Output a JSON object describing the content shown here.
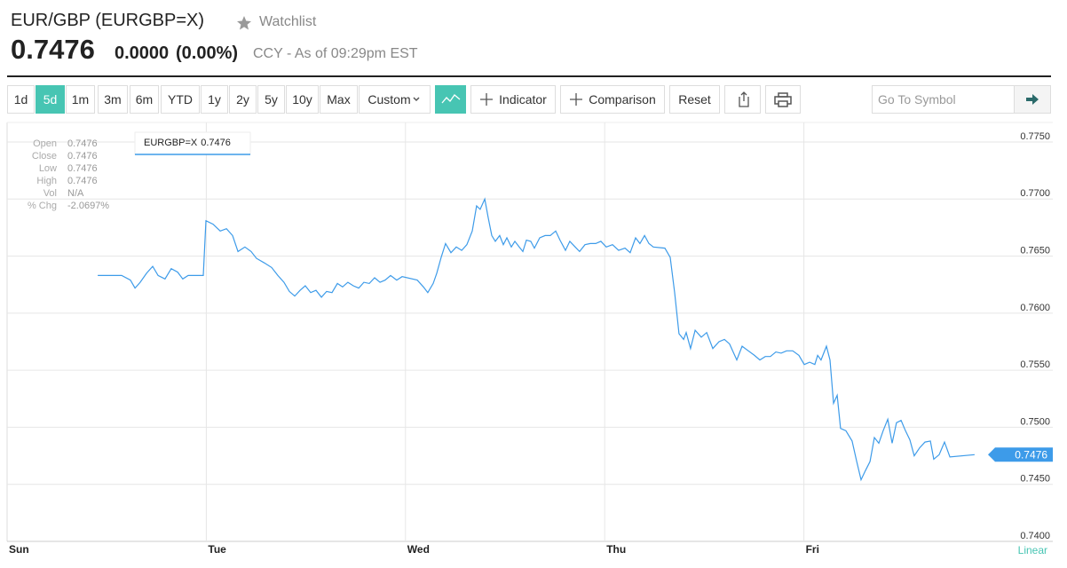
{
  "header": {
    "symbol": "EUR/GBP (EURGBP=X)",
    "watchlist": "Watchlist",
    "price": "0.7476",
    "change": "0.0000",
    "change_pct": "(0.00%)",
    "asof": "CCY - As of 09:29pm EST"
  },
  "toolbar": {
    "ranges": [
      "1d",
      "5d",
      "1m",
      "3m",
      "6m",
      "YTD",
      "1y",
      "2y",
      "5y",
      "10y",
      "Max"
    ],
    "custom": "Custom",
    "indicator": "Indicator",
    "comparison": "Comparison",
    "reset": "Reset",
    "search_placeholder": "Go To Symbol"
  },
  "info": [
    {
      "label": "Open",
      "value": "0.7476"
    },
    {
      "label": "Close",
      "value": "0.7476"
    },
    {
      "label": "Low",
      "value": "0.7476"
    },
    {
      "label": "High",
      "value": "0.7476"
    },
    {
      "label": "Vol",
      "value": "N/A"
    },
    {
      "label": "% Chg",
      "value": "-2.0697%"
    }
  ],
  "chart_data": {
    "type": "line",
    "series": [
      {
        "name": "EURGBP=X",
        "color": "#3d9be9",
        "values": [
          0.7633,
          0.7633,
          0.7629,
          0.7622,
          0.7627,
          0.7635,
          0.7641,
          0.7633,
          0.763,
          0.7639,
          0.7636,
          0.763,
          0.7633,
          0.7633,
          0.7681,
          0.7678,
          0.7672,
          0.7674,
          0.7668,
          0.7654,
          0.7658,
          0.7654,
          0.7648,
          0.7644,
          0.764,
          0.7633,
          0.7627,
          0.7619,
          0.7615,
          0.762,
          0.7624,
          0.7618,
          0.762,
          0.7614,
          0.7619,
          0.7618,
          0.7626,
          0.7623,
          0.7627,
          0.7624,
          0.7622,
          0.7627,
          0.7626,
          0.7631,
          0.7627,
          0.7629,
          0.7633,
          0.7629,
          0.7632,
          0.7629,
          0.7623,
          0.7618,
          0.7626,
          0.7635,
          0.7649,
          0.7661,
          0.7653,
          0.7658,
          0.7655,
          0.766,
          0.7672,
          0.7694,
          0.7691,
          0.77,
          0.7684,
          0.7668,
          0.7663,
          0.7668,
          0.766,
          0.7666,
          0.7658,
          0.7663,
          0.7658,
          0.7654,
          0.7664,
          0.7663,
          0.7657,
          0.7666,
          0.7668,
          0.7668,
          0.7672,
          0.7664,
          0.7655,
          0.7663,
          0.7658,
          0.7654,
          0.766,
          0.7661,
          0.7661,
          0.7663,
          0.7658,
          0.766,
          0.7655,
          0.7657,
          0.7653,
          0.7666,
          0.7661,
          0.7668,
          0.7661,
          0.7658,
          0.7657,
          0.7649,
          0.7618,
          0.7582,
          0.7577,
          0.7583,
          0.7569,
          0.7585,
          0.7579,
          0.7583,
          0.7569,
          0.7575,
          0.7577,
          0.7573,
          0.7559,
          0.7571,
          0.7567,
          0.7563,
          0.7559,
          0.7562,
          0.7562,
          0.7566,
          0.7565,
          0.7567,
          0.7567,
          0.7563,
          0.7555,
          0.7557,
          0.7555,
          0.7563,
          0.7559,
          0.7571,
          0.7559,
          0.7521,
          0.7528,
          0.7499,
          0.7497,
          0.7488,
          0.747,
          0.7454,
          0.7462,
          0.747,
          0.7491,
          0.7486,
          0.7497,
          0.7507,
          0.7486,
          0.7504,
          0.7506,
          0.7497,
          0.7489,
          0.7475,
          0.7482,
          0.7487,
          0.7488,
          0.7472,
          0.7476,
          0.7487,
          0.7474,
          0.7476
        ]
      }
    ],
    "x": [
      0.455,
      0.575,
      0.619,
      0.642,
      0.668,
      0.7,
      0.731,
      0.758,
      0.793,
      0.824,
      0.856,
      0.882,
      0.909,
      0.985,
      0.998,
      1.034,
      1.07,
      1.101,
      1.132,
      1.159,
      1.194,
      1.225,
      1.252,
      1.292,
      1.328,
      1.359,
      1.39,
      1.417,
      1.444,
      1.471,
      1.497,
      1.524,
      1.551,
      1.578,
      1.604,
      1.631,
      1.658,
      1.684,
      1.711,
      1.738,
      1.765,
      1.791,
      1.818,
      1.845,
      1.872,
      1.898,
      1.925,
      1.956,
      1.983,
      2.059,
      2.09,
      2.112,
      2.139,
      2.157,
      2.179,
      2.201,
      2.228,
      2.255,
      2.282,
      2.308,
      2.335,
      2.357,
      2.375,
      2.398,
      2.415,
      2.433,
      2.451,
      2.473,
      2.491,
      2.509,
      2.531,
      2.549,
      2.571,
      2.589,
      2.607,
      2.629,
      2.647,
      2.674,
      2.701,
      2.727,
      2.754,
      2.776,
      2.803,
      2.825,
      2.852,
      2.874,
      2.901,
      2.928,
      2.955,
      2.981,
      3.008,
      3.039,
      3.07,
      3.102,
      3.128,
      3.155,
      3.177,
      3.2,
      3.222,
      3.244,
      3.302,
      3.329,
      3.351,
      3.373,
      3.396,
      3.409,
      3.431,
      3.454,
      3.485,
      3.512,
      3.543,
      3.574,
      3.601,
      3.627,
      3.663,
      3.69,
      3.721,
      3.752,
      3.779,
      3.806,
      3.832,
      3.859,
      3.886,
      3.913,
      3.944,
      3.975,
      4.002,
      4.029,
      4.055,
      4.069,
      4.086,
      4.113,
      4.131,
      4.149,
      4.167,
      4.184,
      4.211,
      4.242,
      4.265,
      4.287,
      4.309,
      4.332,
      4.354,
      4.376,
      4.398,
      4.421,
      4.443,
      4.465,
      4.488,
      4.51,
      4.532,
      4.554,
      4.581,
      4.608,
      4.635,
      4.652,
      4.679,
      4.706,
      4.733,
      4.857
    ],
    "xlim": [
      0,
      5
    ],
    "xticks": [
      {
        "value": 0,
        "label": "Sun"
      },
      {
        "value": 1,
        "label": "Tue"
      },
      {
        "value": 2,
        "label": "Wed"
      },
      {
        "value": 3,
        "label": "Thu"
      },
      {
        "value": 4,
        "label": "Fri"
      }
    ],
    "ylim": [
      0.74,
      0.775
    ],
    "yticks": [
      {
        "value": 0.775,
        "label": "0.7750"
      },
      {
        "value": 0.77,
        "label": "0.7700"
      },
      {
        "value": 0.765,
        "label": "0.7650"
      },
      {
        "value": 0.76,
        "label": "0.7600"
      },
      {
        "value": 0.755,
        "label": "0.7550"
      },
      {
        "value": 0.75,
        "label": "0.7500"
      },
      {
        "value": 0.745,
        "label": "0.7450"
      },
      {
        "value": 0.74,
        "label": "0.7400"
      }
    ],
    "grid": true,
    "scale": "Linear"
  }
}
